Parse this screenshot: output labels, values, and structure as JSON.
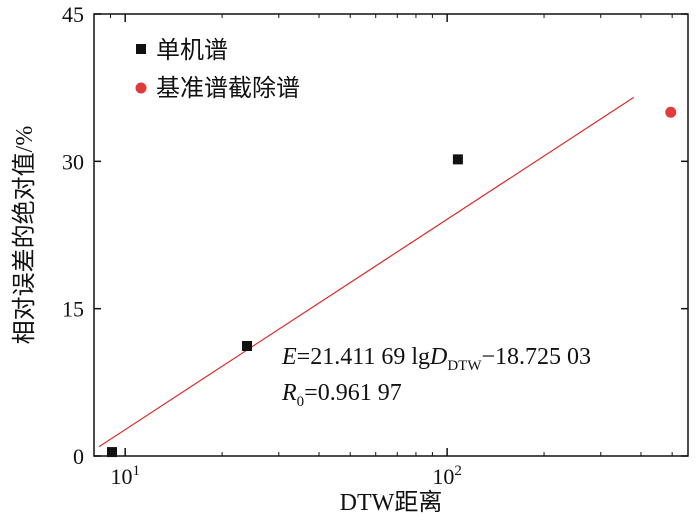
{
  "chart_data": {
    "type": "scatter",
    "xlabel": "DTW距离",
    "ylabel": "相对误差的绝对值/%",
    "x_scale": "log",
    "xlim": [
      8,
      560
    ],
    "ylim": [
      0,
      45
    ],
    "y_ticks": [
      0,
      15,
      30,
      45
    ],
    "x_ticks": [
      {
        "value": 10,
        "base": "10",
        "exp": "1"
      },
      {
        "value": 100,
        "base": "10",
        "exp": "2"
      }
    ],
    "grid": false,
    "legend_position": "top-left",
    "series": [
      {
        "name": "单机谱",
        "marker": "square",
        "color": "#111111",
        "points": [
          {
            "x": 9.1,
            "y": 0.4
          },
          {
            "x": 23.9,
            "y": 11.2
          },
          {
            "x": 108,
            "y": 30.2
          }
        ]
      },
      {
        "name": "基准谱截除谱",
        "marker": "circle",
        "color": "#e03a3a",
        "points": [
          {
            "x": 495,
            "y": 35.0
          }
        ]
      }
    ],
    "fit_line": {
      "color": "#d92b2b",
      "slope": 21.41169,
      "intercept": -18.72503,
      "x_range": [
        8.3,
        380
      ]
    },
    "annotation": {
      "eq_E": "E",
      "eq_mid": "=21.411 69 lg",
      "eq_D": "D",
      "eq_sub": "DTW",
      "eq_tail": "−18.725 03",
      "r_R": "R",
      "r_sub": "0",
      "r_tail": "=0.961 97"
    }
  }
}
